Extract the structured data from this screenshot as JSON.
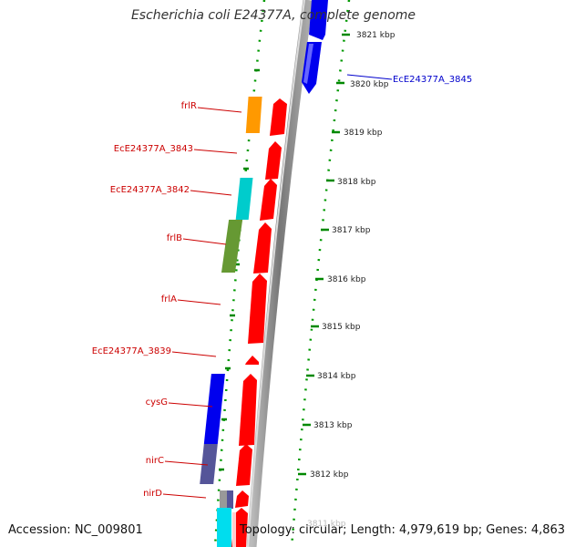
{
  "title": "Escherichia coli E24377A, complete genome",
  "footer": {
    "accession": "Accession: NC_009801",
    "topology": "Topology: circular; Length: 4,979,619 bp; Genes: 4,863"
  },
  "colors": {
    "label_red": "#cc0000",
    "label_blue": "#0000cc",
    "tick_green": "#008800",
    "backbone": "#888888",
    "forward_strand_gene": "#ff0000"
  },
  "scale": {
    "labels": [
      "3821 kbp",
      "3820 kbp",
      "3819 kbp",
      "3818 kbp",
      "3817 kbp",
      "3816 kbp",
      "3815 kbp",
      "3814 kbp",
      "3813 kbp",
      "3812 kbp",
      "3811 kbp"
    ]
  },
  "gene_labels": [
    {
      "text": "EcE24377A_3845",
      "color": "#0000cc"
    },
    {
      "text": "frlR",
      "color": "#cc0000"
    },
    {
      "text": "EcE24377A_3843",
      "color": "#cc0000"
    },
    {
      "text": "EcE24377A_3842",
      "color": "#cc0000"
    },
    {
      "text": "frlB",
      "color": "#cc0000"
    },
    {
      "text": "frlA",
      "color": "#cc0000"
    },
    {
      "text": "EcE24377A_3839",
      "color": "#cc0000"
    },
    {
      "text": "cysG",
      "color": "#cc0000"
    },
    {
      "text": "nirC",
      "color": "#cc0000"
    },
    {
      "text": "nirD",
      "color": "#cc0000"
    }
  ],
  "genes": {
    "reverse": [
      {
        "name": "EcE24377A_3845",
        "color": "#0000ee"
      },
      {
        "name": "EcE24377A_3845-upper",
        "color": "#0000ee"
      }
    ],
    "forward": [
      {
        "name": "frlR-fwd",
        "color": "#ff0000"
      },
      {
        "name": "EcE24377A_3843-fwd",
        "color": "#ff0000"
      },
      {
        "name": "EcE24377A_3842-fwd",
        "color": "#ff0000"
      },
      {
        "name": "frlB-fwd",
        "color": "#ff0000"
      },
      {
        "name": "frlA-fwd",
        "color": "#ff0000"
      },
      {
        "name": "EcE24377A_3839-fwd",
        "color": "#ff0000"
      },
      {
        "name": "cysG-fwd",
        "color": "#ff0000"
      },
      {
        "name": "nirC-fwd",
        "color": "#ff0000"
      },
      {
        "name": "nirD-fwd",
        "color": "#ff0000"
      },
      {
        "name": "nirB-fwd",
        "color": "#ff0000"
      }
    ],
    "cog": [
      {
        "name": "frlR-cog",
        "color": "#ff9900"
      },
      {
        "name": "EcE24377A_3842-cog",
        "color": "#00cccc"
      },
      {
        "name": "frlB-cog",
        "color": "#669933"
      },
      {
        "name": "cysG-cog",
        "color": "#0000ee"
      },
      {
        "name": "nirC-cog",
        "color": "#555599"
      },
      {
        "name": "nirD-cog",
        "color": "#999999"
      },
      {
        "name": "nirD-cog-2",
        "color": "#555599"
      },
      {
        "name": "bottom-cog",
        "color": "#00cccc"
      }
    ]
  }
}
